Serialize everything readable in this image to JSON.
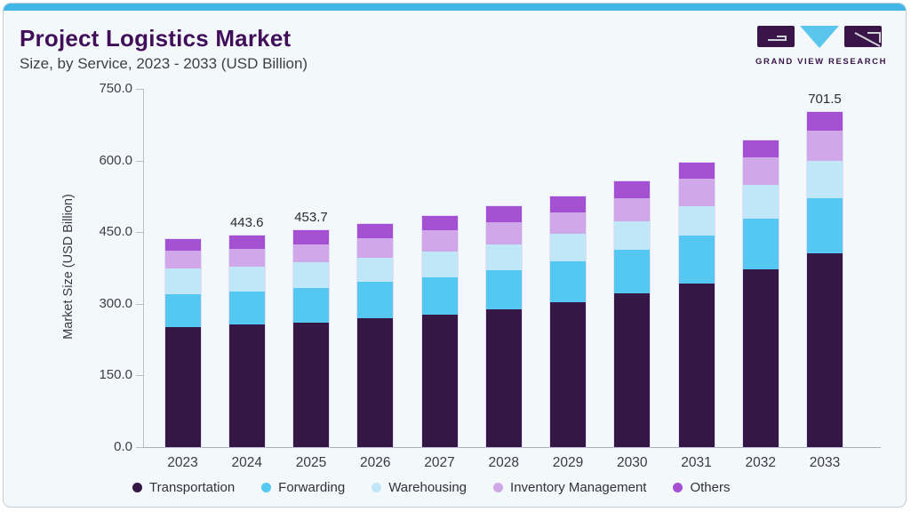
{
  "header": {
    "title": "Project Logistics Market",
    "subtitle": "Size, by Service, 2023 - 2033 (USD Billion)"
  },
  "logo": {
    "text": "GRAND VIEW RESEARCH"
  },
  "chart_data": {
    "type": "bar",
    "stacked": true,
    "title": "Project Logistics Market Size, by Service, 2023 - 2033 (USD Billion)",
    "xlabel": "",
    "ylabel": "Market Size (USD Billion)",
    "ylim": [
      0,
      750
    ],
    "ytick_values": [
      0,
      150,
      300,
      450,
      600,
      750
    ],
    "ytick_labels": [
      "0.0",
      "150.0",
      "300.0",
      "450.0",
      "600.0",
      "750.0"
    ],
    "grid": false,
    "legend_position": "bottom",
    "categories": [
      "2023",
      "2024",
      "2025",
      "2026",
      "2027",
      "2028",
      "2029",
      "2030",
      "2031",
      "2032",
      "2033"
    ],
    "series": [
      {
        "name": "Transportation",
        "color": "#351745",
        "values": [
          251.5,
          256.0,
          261.1,
          270.2,
          278.1,
          289.2,
          302.8,
          321.3,
          342.8,
          372.4,
          405.7
        ]
      },
      {
        "name": "Forwarding",
        "color": "#55c8f1",
        "values": [
          69.0,
          70.3,
          72.8,
          75.3,
          77.1,
          81.4,
          85.7,
          91.2,
          100.6,
          106.2,
          116.0
        ]
      },
      {
        "name": "Warehousing",
        "color": "#c0e7f8",
        "values": [
          53.1,
          51.3,
          52.6,
          51.1,
          54.2,
          53.1,
          57.4,
          61.1,
          61.6,
          70.9,
          78.3
        ]
      },
      {
        "name": "Inventory Management",
        "color": "#d0a7e9",
        "values": [
          37.0,
          37.0,
          37.0,
          40.1,
          44.4,
          46.8,
          46.3,
          48.1,
          56.8,
          56.8,
          61.8
        ]
      },
      {
        "name": "Others",
        "color": "#a350d3",
        "values": [
          24.8,
          29.0,
          30.2,
          30.2,
          29.6,
          34.0,
          32.7,
          35.2,
          33.9,
          35.7,
          39.7
        ]
      }
    ],
    "shown_totals": [
      "",
      "443.6",
      "453.7",
      "",
      "",
      "",
      "",
      "",
      "",
      "",
      "701.5"
    ],
    "colors": {
      "accent_bar": "#41b6e6",
      "card_background": "#f3f8fb",
      "title_text": "#410e5a",
      "axis_line": "#b8c1c8",
      "logo_purple": "#3a1549",
      "logo_blue": "#5ac6ee"
    }
  }
}
